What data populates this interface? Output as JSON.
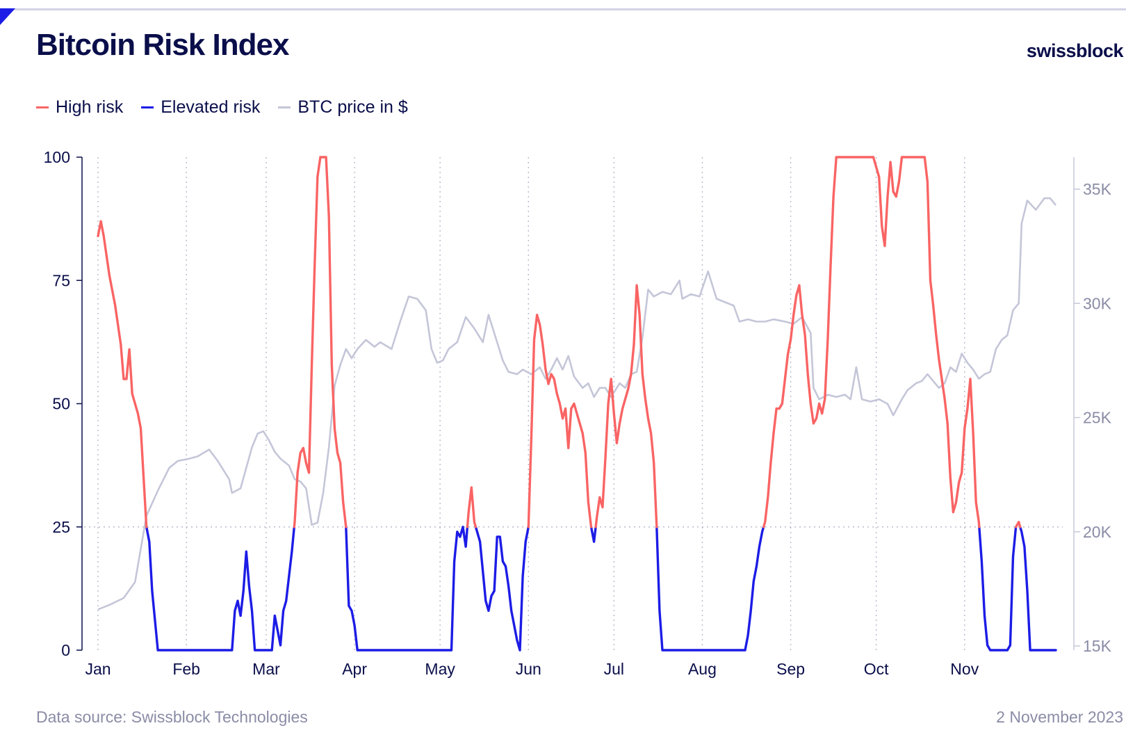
{
  "header": {
    "title": "Bitcoin Risk Index",
    "brand": "swissblock"
  },
  "legend": [
    {
      "label": "High risk",
      "color": "#f96464"
    },
    {
      "label": "Elevated risk",
      "color": "#1c1ce6"
    },
    {
      "label": "BTC price in $",
      "color": "#c4c6d8"
    }
  ],
  "footer": {
    "source": "Data source: Swissblock Technologies",
    "date": "2 November 2023"
  },
  "chart_data": {
    "type": "line",
    "title": "Bitcoin Risk Index",
    "x_ticks": [
      "Jan",
      "Feb",
      "Mar",
      "Apr",
      "May",
      "Jun",
      "Jul",
      "Aug",
      "Sep",
      "Oct",
      "Nov"
    ],
    "y_left": {
      "ticks": [
        "0",
        "25",
        "50",
        "75",
        "100"
      ],
      "range": [
        0,
        100
      ]
    },
    "y_right": {
      "ticks": [
        "15K",
        "20K",
        "25K",
        "30K",
        "35K"
      ],
      "range": [
        15000,
        36500
      ]
    },
    "threshold": 25,
    "grid": "vertical dotted at months, horizontal dotted at 25",
    "legend_position": "top-left",
    "colors": {
      "high": "#f96464",
      "elevated": "#1c1ce6",
      "price": "#c4c6d8",
      "axis": "#0a0e4a"
    },
    "risk_index": [
      [
        1,
        84
      ],
      [
        2,
        87
      ],
      [
        3,
        84
      ],
      [
        5,
        76
      ],
      [
        6,
        73
      ],
      [
        7,
        70
      ],
      [
        9,
        62
      ],
      [
        10,
        55
      ],
      [
        11,
        55
      ],
      [
        12,
        61
      ],
      [
        13,
        52
      ],
      [
        14,
        50
      ],
      [
        15,
        48
      ],
      [
        16,
        45
      ],
      [
        17,
        35
      ],
      [
        18,
        25
      ],
      [
        19,
        22
      ],
      [
        20,
        12
      ],
      [
        21,
        6
      ],
      [
        22,
        0
      ],
      [
        30,
        0
      ],
      [
        40,
        0
      ],
      [
        48,
        0
      ],
      [
        49,
        8
      ],
      [
        50,
        10
      ],
      [
        51,
        7
      ],
      [
        52,
        12
      ],
      [
        53,
        20
      ],
      [
        54,
        13
      ],
      [
        55,
        8
      ],
      [
        56,
        0
      ],
      [
        60,
        0
      ],
      [
        62,
        0
      ],
      [
        63,
        7
      ],
      [
        64,
        4
      ],
      [
        65,
        1
      ],
      [
        66,
        8
      ],
      [
        67,
        10
      ],
      [
        68,
        15
      ],
      [
        69,
        20
      ],
      [
        70,
        26
      ],
      [
        71,
        36
      ],
      [
        72,
        40
      ],
      [
        73,
        41
      ],
      [
        74,
        38
      ],
      [
        75,
        36
      ],
      [
        76,
        58
      ],
      [
        77,
        78
      ],
      [
        78,
        96
      ],
      [
        79,
        100
      ],
      [
        80,
        100
      ],
      [
        81,
        100
      ],
      [
        82,
        88
      ],
      [
        83,
        58
      ],
      [
        84,
        45
      ],
      [
        85,
        40
      ],
      [
        86,
        38
      ],
      [
        87,
        30
      ],
      [
        88,
        25
      ],
      [
        89,
        9
      ],
      [
        90,
        8
      ],
      [
        91,
        5
      ],
      [
        92,
        0
      ],
      [
        100,
        0
      ],
      [
        110,
        0
      ],
      [
        120,
        0
      ],
      [
        125,
        0
      ],
      [
        126,
        18
      ],
      [
        127,
        24
      ],
      [
        128,
        23
      ],
      [
        129,
        25
      ],
      [
        130,
        21
      ],
      [
        131,
        28
      ],
      [
        132,
        33
      ],
      [
        133,
        26
      ],
      [
        134,
        24
      ],
      [
        135,
        22
      ],
      [
        136,
        16
      ],
      [
        137,
        10
      ],
      [
        138,
        8
      ],
      [
        139,
        11
      ],
      [
        140,
        12
      ],
      [
        141,
        23
      ],
      [
        142,
        23
      ],
      [
        143,
        18
      ],
      [
        144,
        17
      ],
      [
        145,
        13
      ],
      [
        146,
        8
      ],
      [
        147,
        5
      ],
      [
        148,
        2
      ],
      [
        149,
        0
      ],
      [
        150,
        15
      ],
      [
        151,
        22
      ],
      [
        152,
        25
      ],
      [
        153,
        43
      ],
      [
        154,
        63
      ],
      [
        155,
        68
      ],
      [
        156,
        66
      ],
      [
        157,
        62
      ],
      [
        158,
        57
      ],
      [
        159,
        54
      ],
      [
        160,
        56
      ],
      [
        161,
        55
      ],
      [
        162,
        52
      ],
      [
        163,
        50
      ],
      [
        164,
        47
      ],
      [
        165,
        49
      ],
      [
        166,
        41
      ],
      [
        167,
        49
      ],
      [
        168,
        50
      ],
      [
        169,
        48
      ],
      [
        170,
        46
      ],
      [
        171,
        44
      ],
      [
        172,
        40
      ],
      [
        173,
        30
      ],
      [
        174,
        25
      ],
      [
        175,
        22
      ],
      [
        176,
        27
      ],
      [
        177,
        31
      ],
      [
        178,
        29
      ],
      [
        179,
        39
      ],
      [
        180,
        50
      ],
      [
        181,
        55
      ],
      [
        182,
        48
      ],
      [
        183,
        42
      ],
      [
        184,
        46
      ],
      [
        185,
        49
      ],
      [
        186,
        51
      ],
      [
        187,
        53
      ],
      [
        188,
        56
      ],
      [
        189,
        62
      ],
      [
        190,
        74
      ],
      [
        191,
        68
      ],
      [
        192,
        56
      ],
      [
        193,
        51
      ],
      [
        194,
        47
      ],
      [
        195,
        44
      ],
      [
        196,
        38
      ],
      [
        197,
        25
      ],
      [
        198,
        8
      ],
      [
        199,
        0
      ],
      [
        210,
        0
      ],
      [
        220,
        0
      ],
      [
        228,
        0
      ],
      [
        229,
        3
      ],
      [
        230,
        8
      ],
      [
        231,
        14
      ],
      [
        232,
        17
      ],
      [
        233,
        21
      ],
      [
        234,
        24
      ],
      [
        235,
        26
      ],
      [
        236,
        31
      ],
      [
        237,
        38
      ],
      [
        238,
        44
      ],
      [
        239,
        49
      ],
      [
        240,
        49
      ],
      [
        241,
        50
      ],
      [
        242,
        55
      ],
      [
        243,
        60
      ],
      [
        244,
        63
      ],
      [
        245,
        68
      ],
      [
        246,
        72
      ],
      [
        247,
        74
      ],
      [
        248,
        68
      ],
      [
        249,
        64
      ],
      [
        250,
        56
      ],
      [
        251,
        50
      ],
      [
        252,
        46
      ],
      [
        253,
        47
      ],
      [
        254,
        50
      ],
      [
        255,
        48
      ],
      [
        256,
        51
      ],
      [
        257,
        63
      ],
      [
        258,
        78
      ],
      [
        259,
        92
      ],
      [
        260,
        100
      ],
      [
        265,
        100
      ],
      [
        270,
        100
      ],
      [
        273,
        100
      ],
      [
        274,
        98
      ],
      [
        275,
        96
      ],
      [
        276,
        86
      ],
      [
        277,
        82
      ],
      [
        278,
        92
      ],
      [
        279,
        99
      ],
      [
        280,
        93
      ],
      [
        281,
        92
      ],
      [
        282,
        95
      ],
      [
        283,
        100
      ],
      [
        290,
        100
      ],
      [
        291,
        100
      ],
      [
        292,
        95
      ],
      [
        293,
        75
      ],
      [
        294,
        70
      ],
      [
        295,
        64
      ],
      [
        296,
        59
      ],
      [
        297,
        55
      ],
      [
        298,
        51
      ],
      [
        299,
        46
      ],
      [
        300,
        35
      ],
      [
        301,
        28
      ],
      [
        302,
        30
      ],
      [
        303,
        34
      ],
      [
        304,
        36
      ],
      [
        305,
        45
      ],
      [
        306,
        49
      ],
      [
        307,
        55
      ],
      [
        308,
        44
      ],
      [
        309,
        30
      ],
      [
        310,
        26
      ],
      [
        311,
        18
      ],
      [
        312,
        7
      ],
      [
        313,
        1
      ],
      [
        314,
        0
      ],
      [
        320,
        0
      ],
      [
        321,
        1
      ],
      [
        322,
        19
      ],
      [
        323,
        25
      ],
      [
        324,
        26
      ],
      [
        325,
        24
      ],
      [
        326,
        21
      ],
      [
        327,
        12
      ],
      [
        328,
        0
      ],
      [
        336,
        0
      ],
      [
        337,
        0
      ]
    ],
    "btc_price": [
      [
        1,
        16600
      ],
      [
        5,
        16800
      ],
      [
        10,
        17100
      ],
      [
        14,
        17800
      ],
      [
        18,
        20700
      ],
      [
        22,
        21800
      ],
      [
        26,
        22800
      ],
      [
        29,
        23100
      ],
      [
        33,
        23200
      ],
      [
        36,
        23300
      ],
      [
        40,
        23600
      ],
      [
        43,
        23100
      ],
      [
        47,
        22300
      ],
      [
        48,
        21700
      ],
      [
        51,
        21900
      ],
      [
        53,
        22800
      ],
      [
        55,
        23700
      ],
      [
        57,
        24300
      ],
      [
        59,
        24400
      ],
      [
        61,
        24000
      ],
      [
        63,
        23500
      ],
      [
        65,
        23200
      ],
      [
        68,
        22900
      ],
      [
        70,
        22300
      ],
      [
        72,
        22200
      ],
      [
        74,
        21900
      ],
      [
        76,
        20300
      ],
      [
        78,
        20400
      ],
      [
        80,
        21700
      ],
      [
        82,
        23700
      ],
      [
        84,
        26400
      ],
      [
        86,
        27300
      ],
      [
        88,
        28000
      ],
      [
        90,
        27600
      ],
      [
        92,
        28000
      ],
      [
        95,
        28400
      ],
      [
        98,
        28100
      ],
      [
        100,
        28300
      ],
      [
        104,
        28000
      ],
      [
        107,
        29200
      ],
      [
        110,
        30300
      ],
      [
        113,
        30200
      ],
      [
        116,
        29700
      ],
      [
        118,
        28000
      ],
      [
        120,
        27400
      ],
      [
        122,
        27500
      ],
      [
        124,
        28000
      ],
      [
        127,
        28300
      ],
      [
        130,
        29400
      ],
      [
        133,
        28900
      ],
      [
        136,
        28300
      ],
      [
        138,
        29500
      ],
      [
        141,
        28300
      ],
      [
        143,
        27500
      ],
      [
        145,
        27000
      ],
      [
        148,
        26900
      ],
      [
        150,
        27100
      ],
      [
        153,
        26900
      ],
      [
        156,
        27200
      ],
      [
        158,
        26700
      ],
      [
        160,
        27100
      ],
      [
        162,
        27600
      ],
      [
        164,
        27100
      ],
      [
        166,
        27700
      ],
      [
        168,
        26800
      ],
      [
        171,
        26300
      ],
      [
        173,
        26500
      ],
      [
        175,
        25900
      ],
      [
        177,
        26300
      ],
      [
        179,
        26300
      ],
      [
        181,
        25900
      ],
      [
        184,
        26500
      ],
      [
        186,
        26300
      ],
      [
        188,
        26900
      ],
      [
        190,
        27000
      ],
      [
        192,
        28500
      ],
      [
        194,
        30600
      ],
      [
        196,
        30300
      ],
      [
        199,
        30500
      ],
      [
        202,
        30400
      ],
      [
        205,
        31000
      ],
      [
        206,
        30200
      ],
      [
        209,
        30400
      ],
      [
        212,
        30300
      ],
      [
        215,
        31400
      ],
      [
        218,
        30200
      ],
      [
        220,
        30100
      ],
      [
        224,
        29900
      ],
      [
        226,
        29200
      ],
      [
        229,
        29300
      ],
      [
        232,
        29200
      ],
      [
        235,
        29200
      ],
      [
        238,
        29300
      ],
      [
        242,
        29200
      ],
      [
        245,
        29100
      ],
      [
        248,
        29400
      ],
      [
        251,
        28700
      ],
      [
        252,
        26300
      ],
      [
        254,
        25800
      ],
      [
        257,
        26000
      ],
      [
        260,
        25900
      ],
      [
        263,
        26000
      ],
      [
        265,
        25800
      ],
      [
        267,
        27200
      ],
      [
        269,
        25800
      ],
      [
        272,
        25700
      ],
      [
        275,
        25800
      ],
      [
        278,
        25600
      ],
      [
        280,
        25100
      ],
      [
        283,
        25800
      ],
      [
        285,
        26200
      ],
      [
        288,
        26500
      ],
      [
        290,
        26600
      ],
      [
        292,
        26900
      ],
      [
        294,
        26600
      ],
      [
        296,
        26300
      ],
      [
        298,
        26500
      ],
      [
        300,
        27200
      ],
      [
        302,
        27000
      ],
      [
        304,
        27800
      ],
      [
        306,
        27400
      ],
      [
        308,
        27100
      ],
      [
        310,
        26700
      ],
      [
        312,
        26900
      ],
      [
        314,
        27000
      ],
      [
        316,
        28000
      ],
      [
        318,
        28400
      ],
      [
        320,
        28600
      ],
      [
        322,
        29700
      ],
      [
        324,
        30000
      ],
      [
        325,
        33500
      ],
      [
        327,
        34500
      ],
      [
        330,
        34100
      ],
      [
        333,
        34600
      ],
      [
        335,
        34600
      ],
      [
        337,
        34300
      ]
    ]
  }
}
